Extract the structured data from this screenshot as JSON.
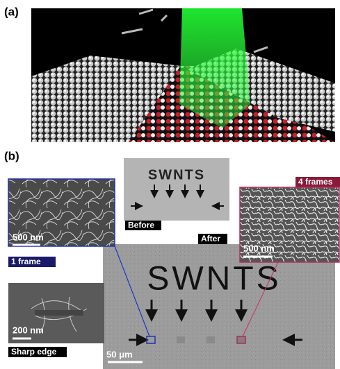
{
  "panels": {
    "a": {
      "label": "(a)"
    },
    "b": {
      "label": "(b)",
      "before_inset": {
        "text": "SWNTS",
        "label": "Before"
      },
      "after_label": "After",
      "main_image": {
        "text": "SWNTS",
        "scale_bar": "50 μm"
      },
      "one_frame": {
        "label": "1 frame",
        "scale_bar": "500 nm"
      },
      "four_frames": {
        "label": "4 frames",
        "scale_bar": "500 nm"
      },
      "sharp_edge": {
        "label": "Sharp edge",
        "scale_bar": "200 nm"
      }
    }
  }
}
